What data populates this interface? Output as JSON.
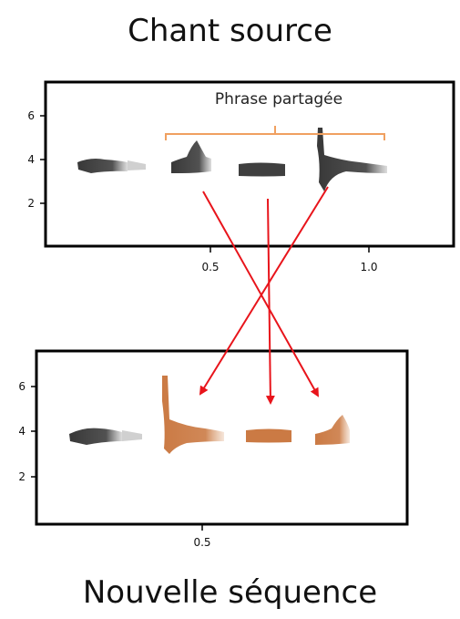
{
  "titles": {
    "source": "Chant source",
    "new_sequence": "Nouvelle séquence"
  },
  "annotation": {
    "shared_phrase": "Phrase partagée"
  },
  "panels": [
    {
      "name": "source",
      "y_ticks": [
        "6",
        "4",
        "2"
      ],
      "x_ticks": [
        "0.5",
        "1.0"
      ]
    },
    {
      "name": "new",
      "y_ticks": [
        "6",
        "4",
        "2"
      ],
      "x_ticks": [
        "0.5"
      ]
    }
  ],
  "colors": {
    "arrow": "#e8141b",
    "bracket": "#f0a060",
    "syllable_source": "#2a2a2a",
    "syllable_copied": "#c8733a",
    "frame": "#000000"
  }
}
